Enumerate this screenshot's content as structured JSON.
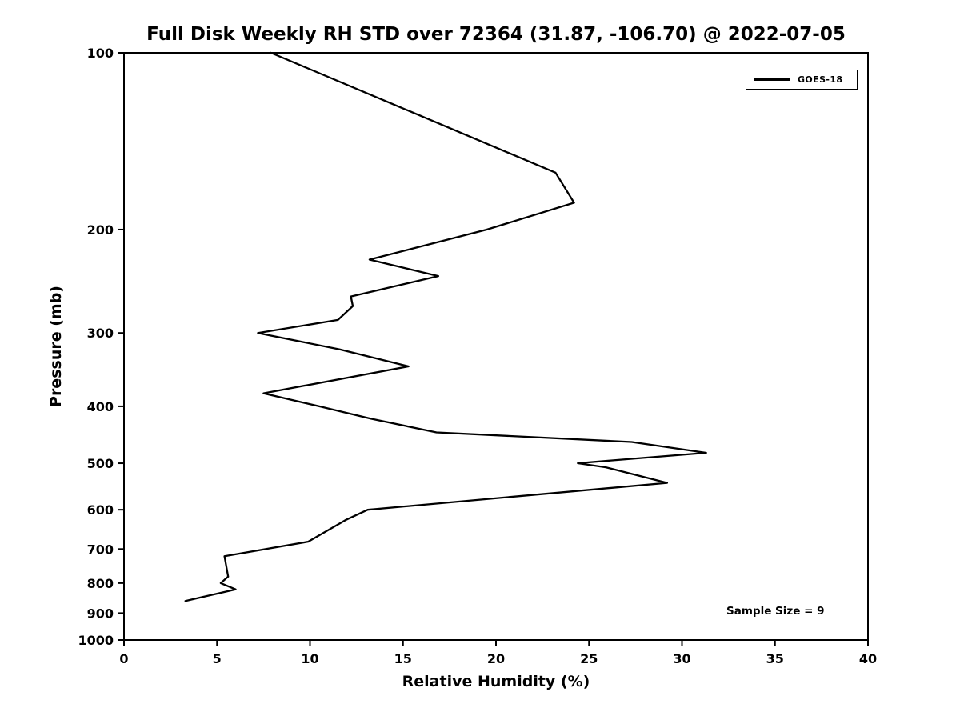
{
  "chart_data": {
    "type": "line",
    "title": "Full Disk Weekly RH STD over 72364 (31.87, -106.70) @ 2022-07-05",
    "xlabel": "Relative Humidity (%)",
    "ylabel": "Pressure (mb)",
    "xlim": [
      0,
      40
    ],
    "xticks": [
      0,
      5,
      10,
      15,
      20,
      25,
      30,
      35,
      40
    ],
    "ylim": [
      100,
      1000
    ],
    "yticks": [
      100,
      200,
      300,
      400,
      500,
      600,
      700,
      800,
      900,
      1000
    ],
    "yscale": "log",
    "y_axis_direction": "inverted (pressure increases downward)",
    "grid": false,
    "frame_color": "#000000",
    "legend": {
      "position": "upper right",
      "entries": [
        {
          "label": "GOES-18",
          "color": "#000000"
        }
      ]
    },
    "annotations": [
      {
        "text": "Sample Size = 9",
        "position": "lower right"
      }
    ],
    "series": [
      {
        "name": "GOES-18",
        "color": "#000000",
        "pressure_mb": [
          100,
          160,
          180,
          200,
          225,
          240,
          260,
          270,
          285,
          300,
          320,
          342,
          380,
          400,
          420,
          443,
          460,
          480,
          500,
          508,
          540,
          600,
          625,
          680,
          720,
          780,
          800,
          820,
          858
        ],
        "rh_percent": [
          7.9,
          23.2,
          24.2,
          19.5,
          13.2,
          16.9,
          12.2,
          12.3,
          11.5,
          7.2,
          11.6,
          15.3,
          7.5,
          10.5,
          13.3,
          16.8,
          27.3,
          31.3,
          24.4,
          25.9,
          29.2,
          13.1,
          11.9,
          9.9,
          5.4,
          5.6,
          5.2,
          6.0,
          3.3
        ]
      }
    ]
  }
}
